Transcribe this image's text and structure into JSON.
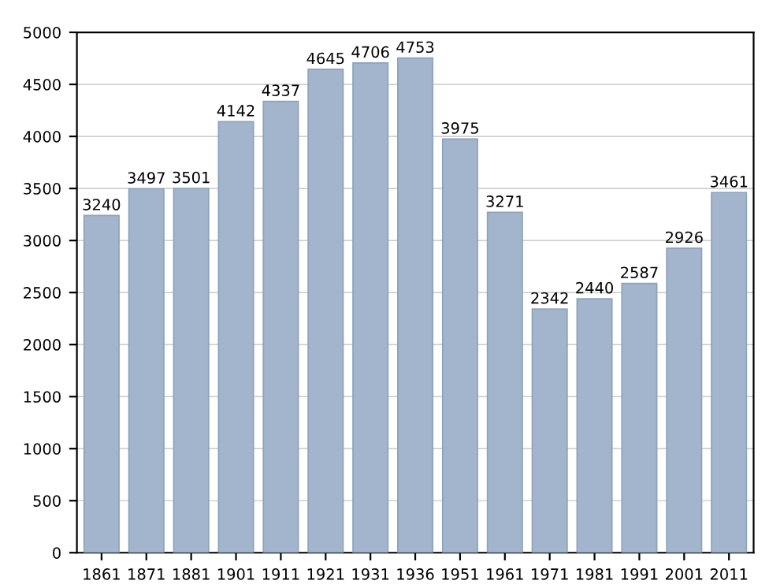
{
  "chart_data": {
    "type": "bar",
    "categories": [
      "1861",
      "1871",
      "1881",
      "1901",
      "1911",
      "1921",
      "1931",
      "1936",
      "1951",
      "1961",
      "1971",
      "1981",
      "1991",
      "2001",
      "2011"
    ],
    "values": [
      3240,
      3497,
      3501,
      4142,
      4337,
      4645,
      4706,
      4753,
      3975,
      3271,
      2342,
      2440,
      2587,
      2926,
      3461
    ],
    "color": "#a2b5cd",
    "ylim": [
      0,
      5000
    ],
    "yticks": [
      0,
      500,
      1000,
      1500,
      2000,
      2500,
      3000,
      3500,
      4000,
      4500,
      5000
    ],
    "grid": "y",
    "data_labels": true
  }
}
